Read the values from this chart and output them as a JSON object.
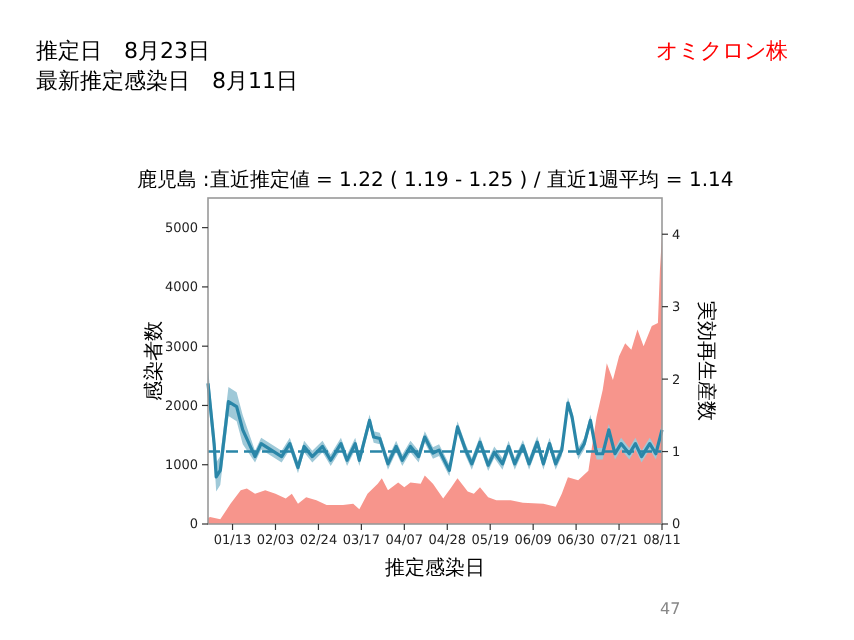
{
  "chart_data": {
    "type": "area",
    "title": "鹿児島 :直近推定値 = 1.22 ( 1.19 - 1.25 ) / 直近1週平均 = 1.14",
    "xlabel": "推定感染日",
    "ylabel": "感染者数",
    "y2label": "実効再生産数",
    "annotations": [
      "推定日　8月23日",
      "最新推定感染日　8月11日",
      "オミクロン株",
      "47"
    ],
    "xlim": [
      "--01-01",
      "--08-11"
    ],
    "xticks": [
      {
        "value": "--01-13",
        "label": "01/13"
      },
      {
        "value": "--02-03",
        "label": "02/03"
      },
      {
        "value": "--02-24",
        "label": "02/24"
      },
      {
        "value": "--03-17",
        "label": "03/17"
      },
      {
        "value": "--04-07",
        "label": "04/07"
      },
      {
        "value": "--04-28",
        "label": "04/28"
      },
      {
        "value": "--05-19",
        "label": "05/19"
      },
      {
        "value": "--06-09",
        "label": "06/09"
      },
      {
        "value": "--06-30",
        "label": "06/30"
      },
      {
        "value": "--07-21",
        "label": "07/21"
      },
      {
        "value": "--08-11",
        "label": "08/11"
      }
    ],
    "ylim": [
      0,
      5500
    ],
    "yticks": [
      0,
      1000,
      2000,
      3000,
      4000,
      5000
    ],
    "y2lim": [
      0,
      4.5
    ],
    "y2ticks": [
      0,
      1,
      2,
      3,
      4
    ],
    "grid": false,
    "ref_lines": [
      {
        "axis": "y2",
        "value": 1,
        "color": "#2a86a8",
        "line_style": "dashed"
      }
    ],
    "series": [
      {
        "color": "#f7958c",
        "x": [
          "--01-01",
          "--01-02",
          "--01-07",
          "--01-12",
          "--01-17",
          "--01-20",
          "--01-24",
          "--01-29",
          "--02-03",
          "--02-08",
          "--02-11",
          "--02-14",
          "--02-18",
          "--02-23",
          "--02-28",
          "--03-08",
          "--03-13",
          "--03-16",
          "--03-20",
          "--03-25",
          "--03-27",
          "--03-30",
          "--04-04",
          "--04-07",
          "--04-10",
          "--04-15",
          "--04-17",
          "--04-21",
          "--04-26",
          "--04-30",
          "--05-03",
          "--05-08",
          "--05-11",
          "--05-14",
          "--05-18",
          "--05-22",
          "--05-29",
          "--06-04",
          "--06-14",
          "--06-20",
          "--06-23",
          "--06-26",
          "--07-01",
          "--07-06",
          "--07-10",
          "--07-13",
          "--07-15",
          "--07-18",
          "--07-21",
          "--07-24",
          "--07-27",
          "--07-30",
          "--08-02",
          "--08-06",
          "--08-09",
          "--08-10",
          "--08-11"
        ],
        "values": [
          100,
          120,
          80,
          340,
          570,
          600,
          510,
          570,
          510,
          430,
          510,
          340,
          450,
          400,
          320,
          320,
          340,
          250,
          510,
          680,
          770,
          570,
          700,
          620,
          700,
          680,
          820,
          680,
          430,
          620,
          770,
          550,
          510,
          620,
          450,
          400,
          400,
          360,
          340,
          290,
          510,
          790,
          740,
          900,
          1810,
          2260,
          2710,
          2430,
          2830,
          3050,
          2940,
          3280,
          3000,
          3340,
          3390,
          4300,
          4860
        ]
      },
      {
        "type": "line",
        "axis": "y2",
        "color": "#2a86a8",
        "x": [
          "--01-01",
          "--01-04",
          "--01-05",
          "--01-07",
          "--01-11",
          "--01-15",
          "--01-18",
          "--01-24",
          "--01-27",
          "--02-01",
          "--02-06",
          "--02-10",
          "--02-14",
          "--02-17",
          "--02-21",
          "--02-26",
          "--03-02",
          "--03-07",
          "--03-10",
          "--03-14",
          "--03-16",
          "--03-21",
          "--03-23",
          "--03-26",
          "--03-30",
          "--04-03",
          "--04-06",
          "--04-10",
          "--04-14",
          "--04-17",
          "--04-21",
          "--04-24",
          "--04-29",
          "--05-03",
          "--05-07",
          "--05-10",
          "--05-14",
          "--05-18",
          "--05-21",
          "--05-25",
          "--05-28",
          "--05-31",
          "--06-04",
          "--06-07",
          "--06-11",
          "--06-14",
          "--06-17",
          "--06-20",
          "--06-23",
          "--06-26",
          "--06-28",
          "--07-01",
          "--07-04",
          "--07-07",
          "--07-10",
          "--07-13",
          "--07-16",
          "--07-19",
          "--07-22",
          "--07-26",
          "--07-29",
          "--08-01",
          "--08-05",
          "--08-08",
          "--08-11"
        ],
        "values": [
          1.94,
          1.11,
          0.65,
          0.74,
          1.69,
          1.62,
          1.3,
          0.93,
          1.11,
          1.02,
          0.93,
          1.11,
          0.78,
          1.07,
          0.93,
          1.07,
          0.88,
          1.11,
          0.88,
          1.11,
          0.88,
          1.43,
          1.2,
          1.18,
          0.83,
          1.07,
          0.88,
          1.07,
          0.93,
          1.2,
          0.98,
          1.02,
          0.74,
          1.34,
          1.02,
          0.83,
          1.13,
          0.81,
          0.99,
          0.83,
          1.07,
          0.83,
          1.08,
          0.83,
          1.13,
          0.83,
          1.11,
          0.83,
          1.02,
          1.67,
          1.48,
          0.97,
          1.11,
          1.43,
          0.97,
          0.97,
          1.3,
          0.97,
          1.11,
          0.97,
          1.11,
          0.93,
          1.11,
          0.97,
          1.3
        ],
        "lower": [
          1.74,
          0.91,
          0.45,
          0.54,
          1.49,
          1.42,
          1.1,
          0.85,
          1.03,
          0.94,
          0.85,
          1.03,
          0.7,
          0.99,
          0.85,
          0.99,
          0.8,
          1.03,
          0.8,
          1.03,
          0.8,
          1.35,
          1.12,
          1.1,
          0.75,
          0.99,
          0.8,
          0.99,
          0.85,
          1.12,
          0.9,
          0.94,
          0.66,
          1.26,
          0.94,
          0.75,
          1.05,
          0.73,
          0.91,
          0.75,
          0.99,
          0.75,
          1.0,
          0.75,
          1.05,
          0.75,
          1.03,
          0.75,
          0.94,
          1.59,
          1.4,
          0.89,
          1.03,
          1.35,
          0.89,
          0.89,
          1.22,
          0.89,
          1.03,
          0.89,
          1.03,
          0.85,
          1.03,
          0.89,
          1.22
        ],
        "upper": [
          2.14,
          1.31,
          0.85,
          0.94,
          1.89,
          1.82,
          1.5,
          1.01,
          1.19,
          1.1,
          1.01,
          1.19,
          0.86,
          1.15,
          1.01,
          1.15,
          0.96,
          1.19,
          0.96,
          1.19,
          0.96,
          1.51,
          1.28,
          1.26,
          0.91,
          1.15,
          0.96,
          1.15,
          1.01,
          1.28,
          1.06,
          1.1,
          0.82,
          1.42,
          1.1,
          0.91,
          1.21,
          0.89,
          1.07,
          0.91,
          1.15,
          0.91,
          1.16,
          0.91,
          1.21,
          0.91,
          1.19,
          0.91,
          1.1,
          1.75,
          1.56,
          1.05,
          1.19,
          1.51,
          1.05,
          1.05,
          1.38,
          1.05,
          1.19,
          1.05,
          1.19,
          1.01,
          1.19,
          1.05,
          1.38
        ]
      }
    ]
  }
}
